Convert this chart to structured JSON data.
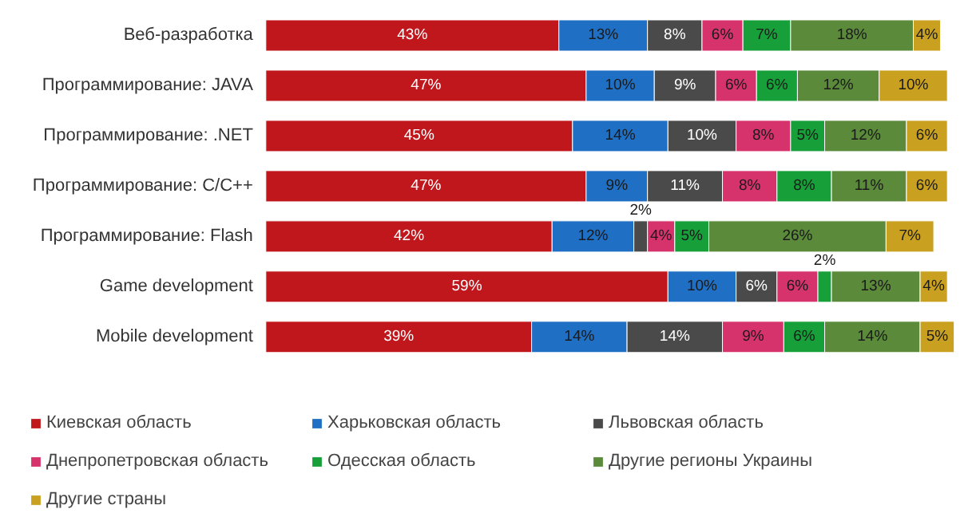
{
  "chart_data": {
    "type": "bar",
    "orientation": "horizontal",
    "stacked": true,
    "legend": "bottom",
    "grid": false,
    "categories": [
      "Веб-разработка",
      "Программирование: JAVA",
      "Программирование: .NET",
      "Программирование: C/C++",
      "Программирование: Flash",
      "Game development",
      "Mobile development"
    ],
    "series": [
      {
        "name": "Киевская область",
        "color": "#c0171c",
        "values": [
          43,
          47,
          45,
          47,
          42,
          59,
          39
        ],
        "value_labels": [
          "43%",
          "47%",
          "45%",
          "47%",
          "42%",
          "59%",
          "39%"
        ]
      },
      {
        "name": "Харьковская область",
        "color": "#1f6fc4",
        "values": [
          13,
          10,
          14,
          9,
          12,
          10,
          14
        ],
        "value_labels": [
          "13%",
          "10%",
          "14%",
          "9%",
          "12%",
          "10%",
          "14%"
        ]
      },
      {
        "name": "Львовская область",
        "color": "#4a4a4a",
        "values": [
          8,
          9,
          10,
          11,
          2,
          6,
          14
        ],
        "value_labels": [
          "8%",
          "9%",
          "10%",
          "11%",
          "2%",
          "6%",
          "14%"
        ]
      },
      {
        "name": "Днепропетровская область",
        "color": "#d6336c",
        "values": [
          6,
          6,
          8,
          8,
          4,
          6,
          9
        ],
        "value_labels": [
          "6%",
          "6%",
          "8%",
          "8%",
          "4%",
          "6%",
          "9%"
        ]
      },
      {
        "name": "Одесская область",
        "color": "#17a03a",
        "values": [
          7,
          6,
          5,
          8,
          5,
          2,
          6
        ],
        "value_labels": [
          "7%",
          "6%",
          "5%",
          "8%",
          "5%",
          "2%",
          "6%"
        ]
      },
      {
        "name": "Другие регионы Украины",
        "color": "#5a8a3a",
        "values": [
          18,
          12,
          12,
          11,
          26,
          13,
          14
        ],
        "value_labels": [
          "18%",
          "12%",
          "12%",
          "11%",
          "26%",
          "13%",
          "14%"
        ]
      },
      {
        "name": "Другие страны",
        "color": "#c9a020",
        "values": [
          4,
          10,
          6,
          6,
          7,
          4,
          5
        ],
        "value_labels": [
          "4%",
          "10%",
          "6%",
          "6%",
          "7%",
          "4%",
          "5%"
        ]
      }
    ]
  }
}
